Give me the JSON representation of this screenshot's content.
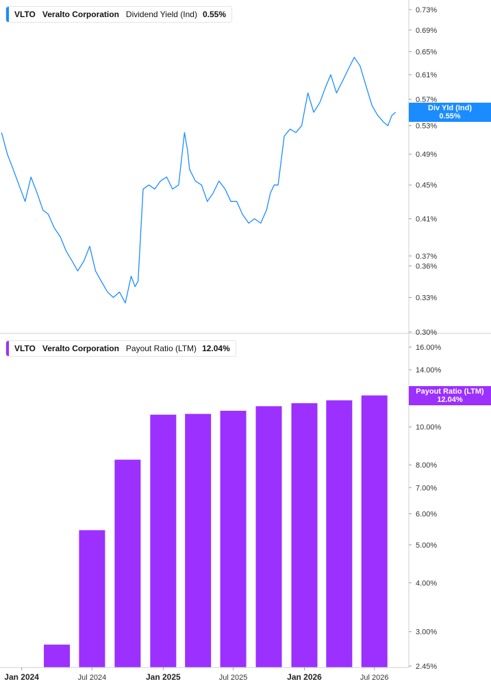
{
  "panels": [
    {
      "legend": {
        "ticker": "VLTO",
        "company": "Veralto Corporation",
        "metric": "Dividend Yield (Ind)",
        "value": "0.55%"
      },
      "flag": {
        "label": "Div Yld (Ind)",
        "value": "0.55%"
      },
      "color": "#1a8cff"
    },
    {
      "legend": {
        "ticker": "VLTO",
        "company": "Veralto Corporation",
        "metric": "Payout Ratio (LTM)",
        "value": "12.04%"
      },
      "flag": {
        "label": "Payout Ratio (LTM)",
        "value": "12.04%"
      },
      "color": "#9b30ff"
    }
  ],
  "x_axis": {
    "ticks": [
      {
        "label": "Jan 2024",
        "major": true,
        "date": "2024-01-01"
      },
      {
        "label": "Jul 2024",
        "major": false,
        "date": "2024-07-01"
      },
      {
        "label": "Jan 2025",
        "major": true,
        "date": "2025-01-01"
      },
      {
        "label": "Jul 2025",
        "major": false,
        "date": "2025-07-01"
      },
      {
        "label": "Jan 2026",
        "major": true,
        "date": "2026-01-01"
      },
      {
        "label": "Jul 2026",
        "major": false,
        "date": "2026-07-01"
      }
    ]
  },
  "chart_data": [
    {
      "type": "line",
      "title": "VLTO Veralto Corporation Dividend Yield (Ind) 0.55%",
      "scale": "log",
      "y_ticks": [
        "0.73%",
        "0.69%",
        "0.65%",
        "0.61%",
        "0.57%",
        "0.53%",
        "0.49%",
        "0.45%",
        "0.41%",
        "0.37%",
        "0.36%",
        "0.33%",
        "0.30%"
      ],
      "y_tick_values": [
        0.73,
        0.69,
        0.65,
        0.61,
        0.57,
        0.53,
        0.49,
        0.45,
        0.41,
        0.37,
        0.36,
        0.33,
        0.3
      ],
      "ylim": [
        0.3,
        0.75
      ],
      "series": [
        {
          "color": "#1a8cff",
          "x": [
            "2023-11-10",
            "2023-11-25",
            "2023-12-10",
            "2023-12-25",
            "2024-01-10",
            "2024-01-25",
            "2024-02-10",
            "2024-02-25",
            "2024-03-10",
            "2024-03-25",
            "2024-04-10",
            "2024-04-25",
            "2024-05-10",
            "2024-05-25",
            "2024-06-10",
            "2024-06-25",
            "2024-07-10",
            "2024-07-25",
            "2024-08-10",
            "2024-08-25",
            "2024-09-10",
            "2024-09-25",
            "2024-10-10",
            "2024-10-20",
            "2024-10-28",
            "2024-11-10",
            "2024-11-25",
            "2024-12-10",
            "2024-12-25",
            "2025-01-10",
            "2025-01-25",
            "2025-02-10",
            "2025-02-25",
            "2025-03-05",
            "2025-03-10",
            "2025-03-25",
            "2025-04-10",
            "2025-04-25",
            "2025-05-10",
            "2025-05-25",
            "2025-06-10",
            "2025-06-25",
            "2025-07-10",
            "2025-07-25",
            "2025-08-10",
            "2025-08-25",
            "2025-09-10",
            "2025-09-25",
            "2025-10-05",
            "2025-10-15",
            "2025-10-25",
            "2025-11-10",
            "2025-11-25",
            "2025-12-10",
            "2025-12-25",
            "2026-01-10",
            "2026-01-25",
            "2026-02-10",
            "2026-02-25",
            "2026-03-10",
            "2026-03-25",
            "2026-04-10",
            "2026-04-25",
            "2026-05-10",
            "2026-05-25",
            "2026-06-10",
            "2026-06-25",
            "2026-07-10",
            "2026-07-25",
            "2026-08-05",
            "2026-08-15",
            "2026-08-25"
          ],
          "y": [
            0.52,
            0.49,
            0.47,
            0.45,
            0.43,
            0.46,
            0.44,
            0.42,
            0.415,
            0.4,
            0.39,
            0.375,
            0.365,
            0.355,
            0.365,
            0.38,
            0.355,
            0.345,
            0.335,
            0.33,
            0.335,
            0.325,
            0.35,
            0.34,
            0.345,
            0.445,
            0.45,
            0.445,
            0.455,
            0.46,
            0.445,
            0.45,
            0.52,
            0.495,
            0.47,
            0.455,
            0.45,
            0.43,
            0.44,
            0.455,
            0.445,
            0.43,
            0.43,
            0.415,
            0.405,
            0.41,
            0.405,
            0.42,
            0.44,
            0.45,
            0.45,
            0.515,
            0.525,
            0.52,
            0.53,
            0.58,
            0.55,
            0.565,
            0.59,
            0.61,
            0.58,
            0.6,
            0.62,
            0.64,
            0.625,
            0.59,
            0.56,
            0.545,
            0.535,
            0.53,
            0.545,
            0.55
          ]
        }
      ]
    },
    {
      "type": "bar",
      "title": "VLTO Veralto Corporation Payout Ratio (LTM) 12.04%",
      "scale": "log",
      "y_ticks": [
        "16.00%",
        "14.00%",
        "10.00%",
        "8.00%",
        "7.00%",
        "6.00%",
        "5.00%",
        "4.00%",
        "3.00%",
        "2.45%"
      ],
      "y_tick_values": [
        16.0,
        14.0,
        10.0,
        8.0,
        7.0,
        6.0,
        5.0,
        4.0,
        3.0,
        2.45
      ],
      "ylim": [
        2.45,
        16.0
      ],
      "categories": [
        "2024-04-01",
        "2024-07-01",
        "2024-10-01",
        "2025-01-01",
        "2025-04-01",
        "2025-07-01",
        "2025-10-01",
        "2026-01-01",
        "2026-04-01",
        "2026-07-01"
      ],
      "series": [
        {
          "color": "#9b30ff",
          "values": [
            2.78,
            5.45,
            8.25,
            10.75,
            10.8,
            11.0,
            11.3,
            11.5,
            11.7,
            12.04
          ]
        }
      ]
    }
  ]
}
